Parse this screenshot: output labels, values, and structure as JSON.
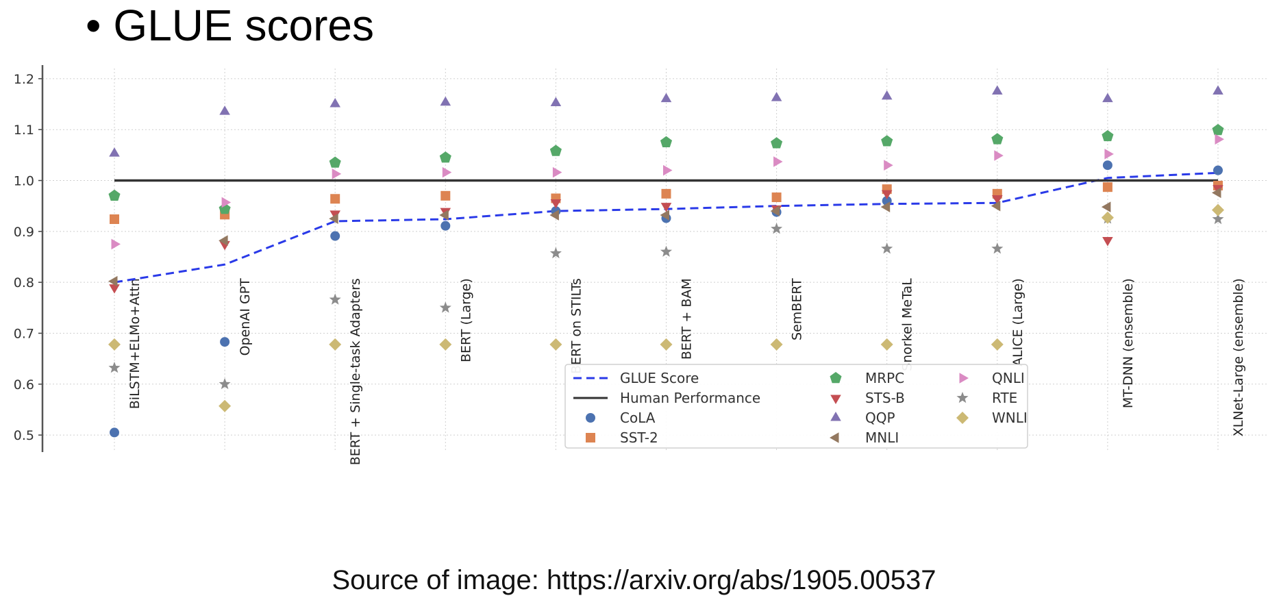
{
  "slide": {
    "title": "GLUE scores",
    "bullet": "•",
    "caption": "Source of image: https://arxiv.org/abs/1905.00537"
  },
  "colors": {
    "CoLA": "#4c72b0",
    "SST-2": "#dd8452",
    "MRPC": "#55a868",
    "STS-B": "#c44e52",
    "QQP": "#8172b2",
    "MNLI": "#937860",
    "QNLI": "#da8bc3",
    "RTE": "#8c8c8c",
    "WNLI": "#ccb974",
    "GLUE Score": "#2a3ae8",
    "Human Performance": "#333333"
  },
  "chart_data": {
    "type": "scatter",
    "ylim": [
      0.48,
      1.22
    ],
    "yticks": [
      "0.5",
      "0.6",
      "0.7",
      "0.8",
      "0.9",
      "1.0",
      "1.1",
      "1.2"
    ],
    "ytick_values": [
      0.5,
      0.6,
      0.7,
      0.8,
      0.9,
      1.0,
      1.1,
      1.2
    ],
    "grid": true,
    "categories": [
      "BiLSTM+ELMo+Attn",
      "OpenAI GPT",
      "BERT + Single-task Adapters",
      "BERT (Large)",
      "BERT on STILTs",
      "BERT + BAM",
      "SemBERT",
      "Snorkel MeTaL",
      "ALICE (Large)",
      "MT-DNN (ensemble)",
      "XLNet-Large (ensemble)"
    ],
    "lines": [
      {
        "name": "GLUE Score",
        "style": "dashed",
        "values": [
          0.8,
          0.835,
          0.92,
          0.924,
          0.94,
          0.944,
          0.95,
          0.954,
          0.956,
          1.005,
          1.015
        ]
      },
      {
        "name": "Human Performance",
        "style": "solid",
        "values": [
          1.0,
          1.0,
          1.0,
          1.0,
          1.0,
          1.0,
          1.0,
          1.0,
          1.0,
          1.0,
          1.0
        ]
      }
    ],
    "series": [
      {
        "name": "CoLA",
        "marker": "circle",
        "values": [
          0.505,
          0.683,
          0.891,
          0.911,
          0.94,
          0.926,
          0.938,
          0.96,
          0.97,
          1.03,
          1.02
        ]
      },
      {
        "name": "SST-2",
        "marker": "square",
        "values": [
          0.924,
          0.933,
          0.964,
          0.97,
          0.965,
          0.974,
          0.967,
          0.983,
          0.974,
          0.987,
          0.99
        ]
      },
      {
        "name": "MRPC",
        "marker": "pentagon",
        "values": [
          0.97,
          0.944,
          1.035,
          1.045,
          1.058,
          1.075,
          1.073,
          1.077,
          1.081,
          1.087,
          1.099
        ]
      },
      {
        "name": "STS-B",
        "marker": "triangle-down",
        "values": [
          0.79,
          0.875,
          0.935,
          0.94,
          0.957,
          0.95,
          0.945,
          0.975,
          0.965,
          0.883,
          0.985
        ]
      },
      {
        "name": "QQP",
        "marker": "triangle-up",
        "values": [
          1.053,
          1.135,
          1.15,
          1.153,
          1.152,
          1.16,
          1.162,
          1.165,
          1.175,
          1.16,
          1.175
        ]
      },
      {
        "name": "MNLI",
        "marker": "triangle-left",
        "values": [
          0.802,
          0.882,
          0.925,
          0.932,
          0.932,
          0.932,
          0.94,
          0.948,
          0.95,
          0.948,
          0.976
        ]
      },
      {
        "name": "QNLI",
        "marker": "triangle-right",
        "values": [
          0.875,
          0.957,
          1.013,
          1.016,
          1.016,
          1.02,
          1.037,
          1.03,
          1.049,
          1.052,
          1.081
        ]
      },
      {
        "name": "RTE",
        "marker": "star",
        "values": [
          0.632,
          0.6,
          0.766,
          0.75,
          0.857,
          0.86,
          0.905,
          0.866,
          0.866,
          0.925,
          0.924
        ]
      },
      {
        "name": "WNLI",
        "marker": "diamond",
        "values": [
          0.678,
          0.557,
          0.678,
          0.678,
          0.678,
          0.678,
          0.678,
          0.678,
          0.678,
          0.927,
          0.942
        ]
      }
    ],
    "legend": {
      "placement": "bottom-center",
      "entries": [
        "GLUE Score",
        "Human Performance",
        "CoLA",
        "SST-2",
        "MRPC",
        "STS-B",
        "QQP",
        "MNLI",
        "QNLI",
        "RTE",
        "WNLI"
      ]
    }
  }
}
